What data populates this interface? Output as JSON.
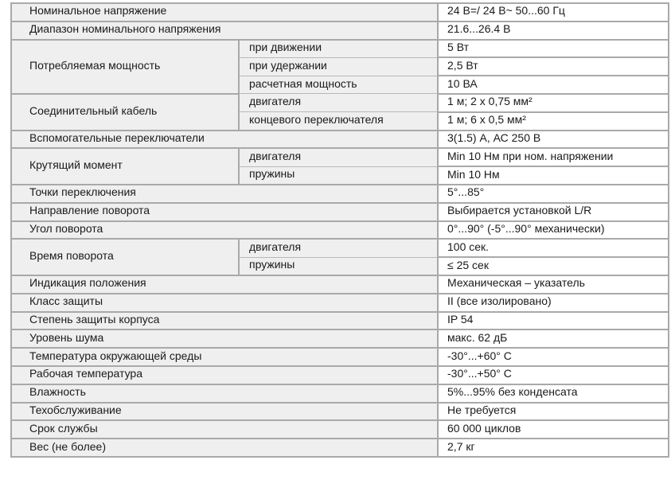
{
  "rows": [
    {
      "label": "Номинальное напряжение",
      "value": "24 В=/ 24 В~ 50...60 Гц"
    },
    {
      "label": "Диапазон номинального напряжения",
      "value": "21.6...26.4 В"
    },
    {
      "label": "Потребляемая мощность",
      "subs": [
        {
          "label": "при движении",
          "value": "5 Вт"
        },
        {
          "label": "при удержании",
          "value": "2,5 Вт"
        },
        {
          "label": "расчетная мощность",
          "value": "10 ВА"
        }
      ]
    },
    {
      "label": "Соединительный кабель",
      "subs": [
        {
          "label": "двигателя",
          "value": "1 м; 2 x 0,75 мм²"
        },
        {
          "label": "концевого переключателя",
          "value": "1 м; 6 x 0,5 мм²"
        }
      ]
    },
    {
      "label": "Вспомогательные переключатели",
      "value": "3(1.5) А, АС 250 В"
    },
    {
      "label": "Крутящий момент",
      "subs": [
        {
          "label": "двигателя",
          "value": "Min 10 Нм при ном. напряжении"
        },
        {
          "label": "пружины",
          "value": "Min 10 Нм"
        }
      ]
    },
    {
      "label": "Точки переключения",
      "value": "5°...85°"
    },
    {
      "label": "Направление поворота",
      "value": "Выбирается установкой L/R"
    },
    {
      "label": "Угол поворота",
      "value": "0°...90° (-5°...90° механически)"
    },
    {
      "label": "Время поворота",
      "subs": [
        {
          "label": "двигателя",
          "value": "100 сек."
        },
        {
          "label": "пружины",
          "value": "≤ 25 сек"
        }
      ]
    },
    {
      "label": "Индикация положения",
      "value": "Механическая – указатель"
    },
    {
      "label": "Класс защиты",
      "value": "II (все изолировано)"
    },
    {
      "label": "Степень защиты корпуса",
      "value": "IP 54"
    },
    {
      "label": "Уровень шума",
      "value": "макс. 62 дБ"
    },
    {
      "label": "Температура окружающей среды",
      "value": "-30°...+60° C"
    },
    {
      "label": "Рабочая температура",
      "value": "-30°...+50° C"
    },
    {
      "label": "Влажность",
      "value": "5%...95% без конденсата"
    },
    {
      "label": "Техобслуживание",
      "value": "Не требуется"
    },
    {
      "label": "Срок службы",
      "value": "60 000 циклов"
    },
    {
      "label": "Вес (не более)",
      "value": "2,7 кг"
    }
  ]
}
